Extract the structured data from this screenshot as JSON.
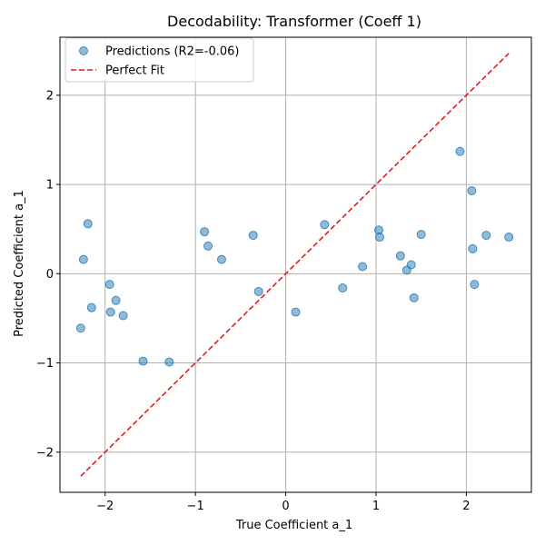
{
  "chart_data": {
    "type": "scatter",
    "title": "Decodability: Transformer (Coeff 1)",
    "xlabel": "True Coefficient a_1",
    "ylabel": "Predicted Coefficient a_1",
    "xlim": [
      -2.5,
      2.72
    ],
    "ylim": [
      -2.45,
      2.65
    ],
    "xticks": [
      -2,
      -1,
      0,
      1,
      2
    ],
    "yticks": [
      -2,
      -1,
      0,
      1,
      2
    ],
    "grid": true,
    "legend_position": "top-left",
    "series": [
      {
        "name": "Predictions (R2=-0.06)",
        "kind": "scatter",
        "color": "#1f77b4",
        "x": [
          -2.27,
          -2.24,
          -2.19,
          -2.15,
          -1.95,
          -1.94,
          -1.88,
          -1.8,
          -1.58,
          -1.29,
          -0.9,
          -0.86,
          -0.71,
          -0.36,
          -0.3,
          0.11,
          0.43,
          0.63,
          0.85,
          1.03,
          1.04,
          1.27,
          1.34,
          1.39,
          1.42,
          1.5,
          1.93,
          2.06,
          2.07,
          2.09,
          2.22,
          2.47
        ],
        "y": [
          -0.61,
          0.16,
          0.56,
          -0.38,
          -0.12,
          -0.43,
          -0.3,
          -0.47,
          -0.98,
          -0.99,
          0.47,
          0.31,
          0.16,
          0.43,
          -0.2,
          -0.43,
          0.55,
          -0.16,
          0.08,
          0.49,
          0.41,
          0.2,
          0.04,
          0.1,
          -0.27,
          0.44,
          1.37,
          0.93,
          0.28,
          -0.12,
          0.43,
          0.41
        ]
      },
      {
        "name": "Perfect Fit",
        "kind": "line",
        "color": "#e41a1c",
        "x": [
          -2.27,
          2.47
        ],
        "y": [
          -2.27,
          2.47
        ]
      }
    ]
  }
}
